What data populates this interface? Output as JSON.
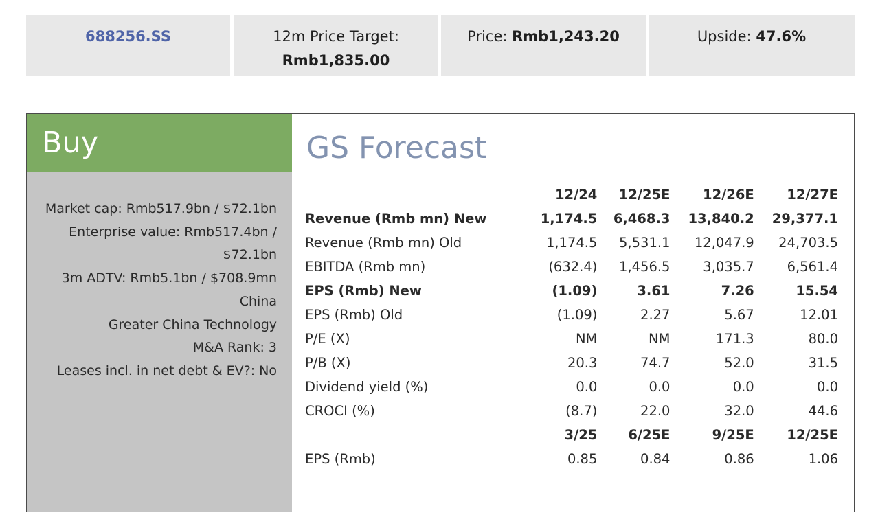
{
  "header": {
    "ticker": "688256.SS",
    "target_label": "12m Price Target:",
    "target_value": "Rmb1,835.00",
    "price_label": "Price:",
    "price_value": "Rmb1,243.20",
    "upside_label": "Upside:",
    "upside_value": "47.6%"
  },
  "rating": "Buy",
  "facts": [
    "Market cap: Rmb517.9bn / $72.1bn",
    "Enterprise value: Rmb517.4bn /",
    "$72.1bn",
    "3m ADTV: Rmb5.1bn / $708.9mn",
    "China",
    "Greater China Technology",
    "M&A Rank: 3",
    "Leases incl. in net debt & EV?: No"
  ],
  "forecast": {
    "title": "GS Forecast",
    "periods": [
      "12/24",
      "12/25E",
      "12/26E",
      "12/27E"
    ],
    "rows": [
      {
        "label": "Revenue (Rmb mn) New",
        "values": [
          "1,174.5",
          "6,468.3",
          "13,840.2",
          "29,377.1"
        ],
        "bold": true
      },
      {
        "label": "Revenue (Rmb mn) Old",
        "values": [
          "1,174.5",
          "5,531.1",
          "12,047.9",
          "24,703.5"
        ],
        "bold": false
      },
      {
        "label": "EBITDA (Rmb mn)",
        "values": [
          "(632.4)",
          "1,456.5",
          "3,035.7",
          "6,561.4"
        ],
        "bold": false
      },
      {
        "label": "EPS (Rmb) New",
        "values": [
          "(1.09)",
          "3.61",
          "7.26",
          "15.54"
        ],
        "bold": true
      },
      {
        "label": "EPS (Rmb) Old",
        "values": [
          "(1.09)",
          "2.27",
          "5.67",
          "12.01"
        ],
        "bold": false
      },
      {
        "label": "P/E (X)",
        "values": [
          "NM",
          "NM",
          "171.3",
          "80.0"
        ],
        "bold": false
      },
      {
        "label": "P/B (X)",
        "values": [
          "20.3",
          "74.7",
          "52.0",
          "31.5"
        ],
        "bold": false
      },
      {
        "label": "Dividend yield (%)",
        "values": [
          "0.0",
          "0.0",
          "0.0",
          "0.0"
        ],
        "bold": false
      },
      {
        "label": "CROCI (%)",
        "values": [
          "(8.7)",
          "22.0",
          "32.0",
          "44.6"
        ],
        "bold": false
      }
    ],
    "quarter_periods": [
      "3/25",
      "6/25E",
      "9/25E",
      "12/25E"
    ],
    "quarter_row": {
      "label": "EPS (Rmb)",
      "values": [
        "0.85",
        "0.84",
        "0.86",
        "1.06"
      ]
    }
  }
}
